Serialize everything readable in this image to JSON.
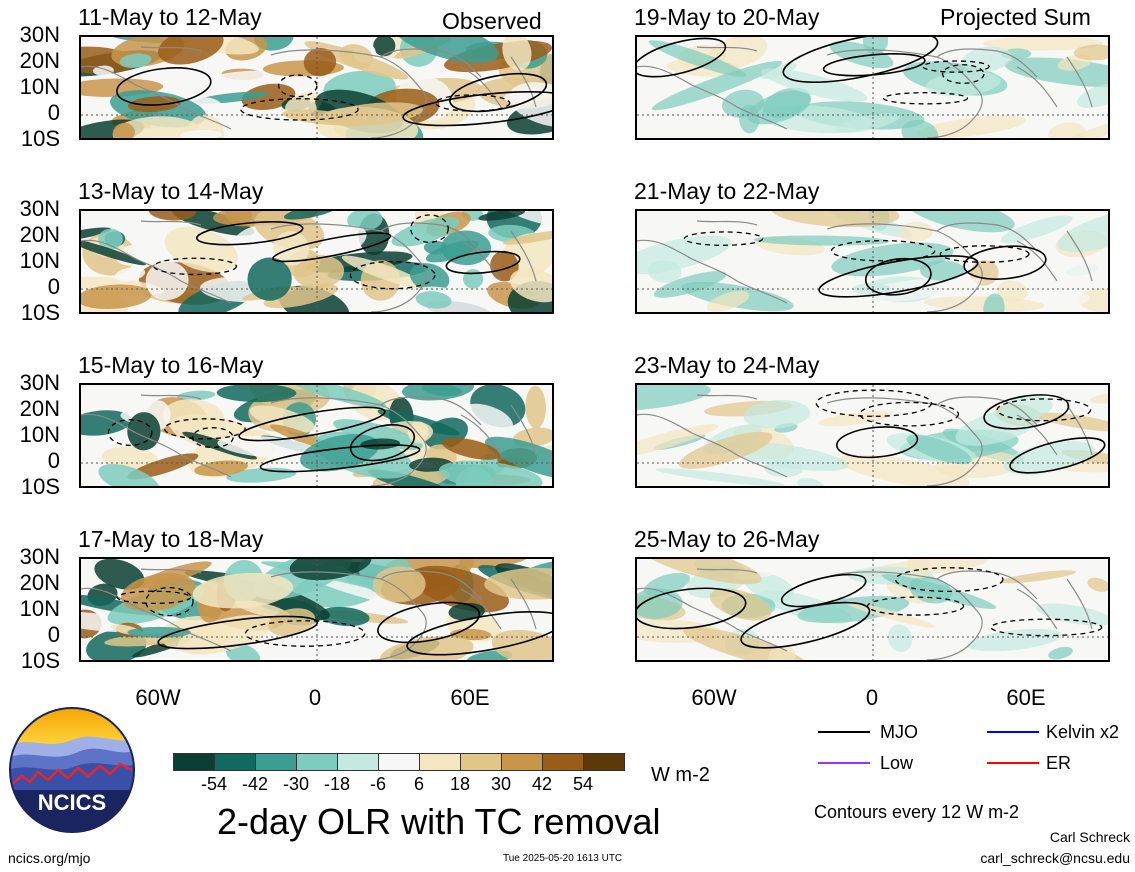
{
  "figure": {
    "title": "2-day OLR with TC removal",
    "left_column_label": "Observed",
    "right_column_label": "Projected Sum",
    "units": "W m-2",
    "contour_note": "Contours every 12 W m-2",
    "website": "ncics.org/mjo",
    "timestamp": "Tue 2025-05-20 1613 UTC",
    "author": "Carl Schreck",
    "email": "carl_schreck@ncsu.edu",
    "logo_text": "NCICS"
  },
  "axes": {
    "lat_labels": [
      "30N",
      "20N",
      "10N",
      "0",
      "10S"
    ],
    "lon_labels": [
      "60W",
      "0",
      "60E"
    ]
  },
  "panels_left": [
    {
      "title": "11-May to 12-May"
    },
    {
      "title": "13-May to 14-May"
    },
    {
      "title": "15-May to 16-May"
    },
    {
      "title": "17-May to 18-May"
    }
  ],
  "panels_right": [
    {
      "title": "19-May to 20-May"
    },
    {
      "title": "21-May to 22-May"
    },
    {
      "title": "23-May to 24-May"
    },
    {
      "title": "25-May to 26-May"
    }
  ],
  "colorbar": {
    "ticks": [
      "-54",
      "-42",
      "-30",
      "-18",
      "-6",
      "6",
      "18",
      "30",
      "42",
      "54"
    ],
    "colors": [
      "#0b3f33",
      "#12695e",
      "#3c9e92",
      "#7dccbe",
      "#c3e9e0",
      "#f7f7f7",
      "#f3e6c1",
      "#e1c589",
      "#c8954a",
      "#9a5d17",
      "#5e3908"
    ]
  },
  "legend": [
    {
      "label": "MJO",
      "color": "#000000"
    },
    {
      "label": "Kelvin x2",
      "color": "#0000ff"
    },
    {
      "label": "Low",
      "color": "#9b30ff"
    },
    {
      "label": "ER",
      "color": "#ff0000"
    }
  ]
}
